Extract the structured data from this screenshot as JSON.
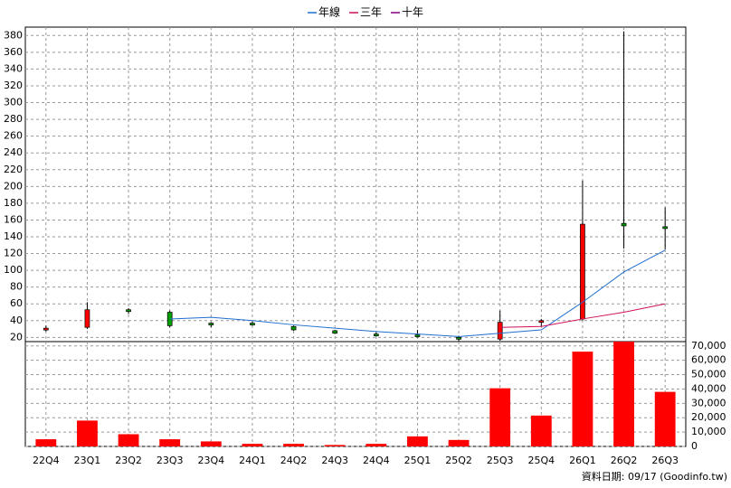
{
  "chart_data": {
    "type": "candlestick",
    "categories": [
      "22Q4",
      "23Q1",
      "23Q2",
      "23Q3",
      "23Q4",
      "24Q1",
      "24Q2",
      "24Q3",
      "24Q4",
      "25Q1",
      "25Q2",
      "25Q3",
      "25Q4",
      "26Q1",
      "26Q2",
      "26Q3"
    ],
    "open": [
      29,
      32,
      53,
      50,
      37,
      37,
      33,
      28,
      24,
      23,
      20,
      18,
      38,
      42,
      156,
      152
    ],
    "high": [
      34,
      62,
      55,
      52,
      38,
      39,
      34,
      29,
      26,
      29,
      22,
      52,
      42,
      207,
      385,
      175
    ],
    "low": [
      27,
      30,
      48,
      32,
      32,
      34,
      28,
      24,
      21,
      20,
      15,
      16,
      33,
      40,
      126,
      125
    ],
    "close": [
      31,
      53,
      51,
      34,
      35,
      36,
      29,
      25,
      23,
      22,
      18,
      38,
      40,
      155,
      153,
      151
    ],
    "up_color": "#ff0000",
    "down_color": "#00a000",
    "series": [
      {
        "name": "年線",
        "color": "#1f6fd0",
        "values": [
          null,
          null,
          null,
          42,
          44,
          40,
          35,
          31,
          27,
          24,
          21,
          25,
          29,
          62,
          98,
          124
        ]
      },
      {
        "name": "三年",
        "color": "#d0105a",
        "values": [
          null,
          null,
          null,
          null,
          null,
          null,
          null,
          null,
          null,
          null,
          null,
          32,
          33,
          42,
          50,
          60
        ]
      },
      {
        "name": "十年",
        "color": "#800080",
        "values": [
          null,
          null,
          null,
          null,
          null,
          null,
          null,
          null,
          null,
          null,
          null,
          null,
          null,
          null,
          null,
          null
        ]
      }
    ],
    "ylim": [
      15,
      390
    ],
    "yticks": [
      20,
      40,
      60,
      80,
      100,
      120,
      140,
      160,
      180,
      200,
      220,
      240,
      260,
      280,
      300,
      320,
      340,
      360,
      380
    ],
    "volume": {
      "color": "#ff0000",
      "values": [
        5000,
        18000,
        8500,
        5000,
        3500,
        1800,
        1800,
        1000,
        1800,
        7000,
        4500,
        40500,
        21500,
        66000,
        73000,
        38000
      ],
      "ylim": [
        0,
        73000
      ],
      "yticks": [
        0,
        {
          "value": 10000,
          "label": "10,000"
        },
        {
          "value": 20000,
          "label": "20,000"
        },
        {
          "value": 30000,
          "label": "30,000"
        },
        {
          "value": 40000,
          "label": "40,000"
        },
        {
          "value": 50000,
          "label": "50,000"
        },
        {
          "value": 60000,
          "label": "60,000"
        },
        {
          "value": 70000,
          "label": "70,000"
        }
      ]
    },
    "grid": true,
    "footer": "資料日期: 09/17 (Goodinfo.tw)"
  }
}
